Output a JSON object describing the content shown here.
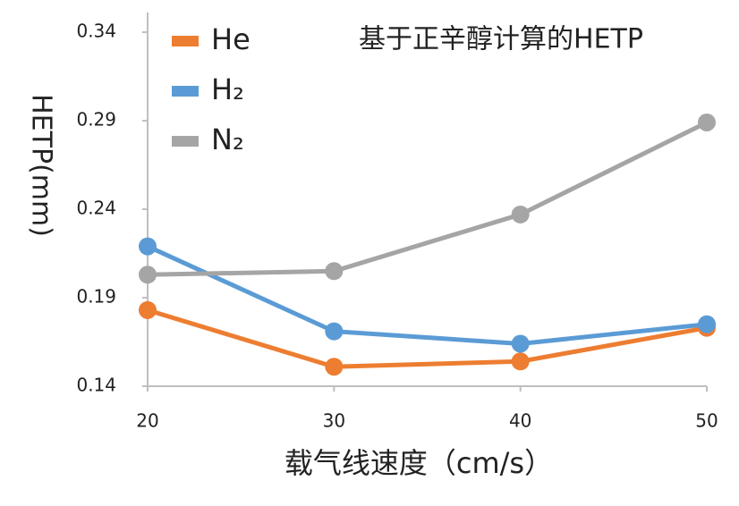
{
  "chart_data": {
    "type": "line",
    "title": "基于正辛醇计算的HETP",
    "x_label": "载气线速度（cm/s）",
    "y_label": "HETP(mm)",
    "x": [
      20,
      30,
      40,
      50
    ],
    "series": [
      {
        "name": "He",
        "color": "#ed7d31",
        "values": [
          0.183,
          0.151,
          0.154,
          0.173
        ]
      },
      {
        "name": "H₂",
        "color": "#5b9bd5",
        "values": [
          0.219,
          0.171,
          0.164,
          0.175
        ]
      },
      {
        "name": "N₂",
        "color": "#a5a5a5",
        "values": [
          0.203,
          0.205,
          0.237,
          0.289
        ]
      }
    ],
    "xlim": [
      20,
      50
    ],
    "xticks": [
      20,
      30,
      40,
      50
    ],
    "ylim": [
      0.14,
      0.34
    ],
    "yticks": [
      0.14,
      0.19,
      0.24,
      0.29,
      0.34
    ],
    "grid": false
  }
}
